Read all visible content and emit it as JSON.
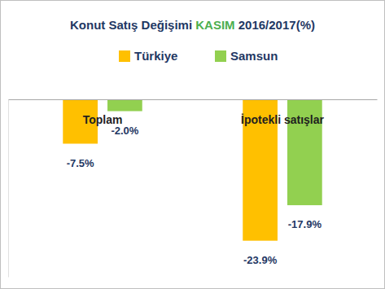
{
  "chart_data": {
    "type": "bar",
    "title": "Konut Satış Değişimi KASIM 2016/2017(%)",
    "categories": [
      "Toplam",
      "İpotekli satışlar"
    ],
    "series": [
      {
        "name": "Türkiye",
        "color": "#ffc000",
        "values": [
          -7.5,
          -23.9
        ],
        "value_labels": [
          "-7.5%",
          "-23.9%"
        ]
      },
      {
        "name": "Samsun",
        "color": "#92d050",
        "values": [
          -2.0,
          -17.9
        ],
        "value_labels": [
          "-2.0%",
          "-17.9%"
        ]
      }
    ],
    "ylim": [
      -30,
      0
    ],
    "tick_labels": "x",
    "data_labels": true,
    "legend": "top",
    "grid": false
  }
}
